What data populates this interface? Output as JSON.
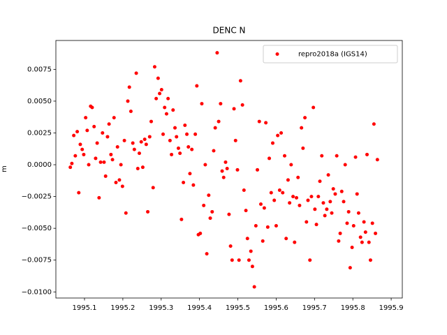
{
  "chart_data": {
    "type": "scatter",
    "title": "DENC N",
    "y_label": "m",
    "series": [
      {
        "name": "repro2018a (IGS14)",
        "color": "#ff0000",
        "x": [
          1995.063,
          1995.067,
          1995.072,
          1995.076,
          1995.081,
          1995.085,
          1995.089,
          1995.094,
          1995.098,
          1995.103,
          1995.107,
          1995.111,
          1995.116,
          1995.12,
          1995.125,
          1995.129,
          1995.133,
          1995.138,
          1995.142,
          1995.147,
          1995.151,
          1995.155,
          1995.16,
          1995.164,
          1995.169,
          1995.173,
          1995.177,
          1995.182,
          1995.186,
          1995.191,
          1995.195,
          1995.199,
          1995.204,
          1995.208,
          1995.213,
          1995.217,
          1995.221,
          1995.226,
          1995.23,
          1995.235,
          1995.239,
          1995.243,
          1995.248,
          1995.252,
          1995.257,
          1995.261,
          1995.265,
          1995.27,
          1995.274,
          1995.279,
          1995.283,
          1995.287,
          1995.292,
          1995.296,
          1995.301,
          1995.305,
          1995.309,
          1995.314,
          1995.318,
          1995.323,
          1995.327,
          1995.331,
          1995.336,
          1995.34,
          1995.345,
          1995.349,
          1995.353,
          1995.358,
          1995.362,
          1995.367,
          1995.371,
          1995.375,
          1995.38,
          1995.384,
          1995.389,
          1995.393,
          1995.397,
          1995.402,
          1995.406,
          1995.411,
          1995.415,
          1995.419,
          1995.424,
          1995.428,
          1995.433,
          1995.437,
          1995.441,
          1995.446,
          1995.45,
          1995.455,
          1995.459,
          1995.463,
          1995.468,
          1995.472,
          1995.477,
          1995.481,
          1995.485,
          1995.49,
          1995.494,
          1995.499,
          1995.503,
          1995.507,
          1995.512,
          1995.516,
          1995.521,
          1995.525,
          1995.529,
          1995.534,
          1995.538,
          1995.543,
          1995.547,
          1995.551,
          1995.556,
          1995.56,
          1995.565,
          1995.569,
          1995.573,
          1995.578,
          1995.582,
          1995.587,
          1995.591,
          1995.595,
          1995.6,
          1995.604,
          1995.609,
          1995.613,
          1995.617,
          1995.622,
          1995.626,
          1995.631,
          1995.635,
          1995.639,
          1995.644,
          1995.648,
          1995.653,
          1995.657,
          1995.661,
          1995.666,
          1995.67,
          1995.675,
          1995.679,
          1995.683,
          1995.688,
          1995.692,
          1995.697,
          1995.701,
          1995.705,
          1995.71,
          1995.714,
          1995.719,
          1995.723,
          1995.727,
          1995.732,
          1995.736,
          1995.741,
          1995.745,
          1995.749,
          1995.754,
          1995.758,
          1995.763,
          1995.767,
          1995.771,
          1995.776,
          1995.78,
          1995.785,
          1995.789,
          1995.793,
          1995.798,
          1995.802,
          1995.807,
          1995.811,
          1995.815,
          1995.82,
          1995.824,
          1995.829,
          1995.833,
          1995.837,
          1995.842,
          1995.846,
          1995.851,
          1995.855,
          1995.859,
          1995.864
        ],
        "values": [
          -0.0002,
          0.0001,
          0.0023,
          0.0007,
          0.0026,
          -0.0022,
          0.0016,
          0.0012,
          0.0008,
          0.0037,
          0.0027,
          0.0,
          0.0046,
          0.0045,
          0.003,
          0.0005,
          0.0017,
          -0.0026,
          0.0002,
          0.0025,
          0.0002,
          -0.0009,
          0.0022,
          0.0032,
          0.0008,
          0.0004,
          0.0037,
          -0.0014,
          0.0014,
          -0.0012,
          0.0,
          -0.0017,
          0.0019,
          -0.0038,
          0.005,
          0.0061,
          0.0042,
          0.0017,
          0.0012,
          0.0072,
          -0.0003,
          0.0009,
          0.0018,
          -0.0002,
          0.002,
          0.0016,
          -0.0037,
          0.0022,
          0.0034,
          -0.0018,
          0.0077,
          0.0052,
          0.0068,
          0.0056,
          0.0059,
          0.0024,
          0.0045,
          0.004,
          0.0052,
          0.0019,
          0.0008,
          0.0043,
          0.0029,
          0.0022,
          0.0013,
          0.0009,
          -0.0043,
          -0.0014,
          0.0031,
          0.0024,
          0.0014,
          -0.0007,
          0.0012,
          -0.0016,
          0.0024,
          0.0062,
          -0.0055,
          -0.0054,
          0.0048,
          -0.0032,
          0.0,
          -0.007,
          -0.0024,
          -0.0042,
          -0.0037,
          0.0011,
          0.0029,
          0.0088,
          0.0034,
          0.0048,
          -0.0005,
          -0.001,
          0.0002,
          -0.0003,
          -0.0039,
          -0.0064,
          -0.0075,
          0.0044,
          0.0019,
          -0.0004,
          -0.0075,
          0.0066,
          0.0047,
          -0.002,
          -0.0036,
          -0.0058,
          -0.0075,
          -0.0068,
          -0.008,
          -0.0096,
          -0.0048,
          -0.0004,
          0.0034,
          -0.0031,
          -0.006,
          -0.0034,
          0.0033,
          -0.0049,
          0.0005,
          -0.0022,
          0.0017,
          -0.0028,
          -0.0048,
          0.0023,
          -0.002,
          0.0025,
          -0.0022,
          0.0007,
          -0.0058,
          -0.0012,
          -0.003,
          0.0,
          -0.0025,
          -0.0061,
          -0.0026,
          -0.001,
          -0.0032,
          0.0029,
          0.0013,
          0.0037,
          -0.0045,
          -0.0028,
          -0.0075,
          -0.0025,
          0.0045,
          -0.0035,
          -0.0047,
          -0.0025,
          -0.0013,
          0.0007,
          -0.003,
          -0.004,
          -0.0035,
          -0.0008,
          -0.0029,
          -0.0038,
          -0.0019,
          -0.0023,
          0.0007,
          -0.006,
          -0.0054,
          -0.0021,
          -0.0029,
          0.0,
          -0.0046,
          -0.0037,
          -0.0081,
          -0.0065,
          -0.0048,
          0.0006,
          -0.0023,
          -0.0038,
          -0.0057,
          -0.0061,
          -0.0045,
          -0.0053,
          0.0008,
          -0.0061,
          -0.0075,
          -0.0046,
          0.0032,
          -0.0054,
          0.0004
        ]
      }
    ],
    "xlim": [
      1995.0253,
      1995.929
    ],
    "xticks": [
      1995.1,
      1995.2,
      1995.3,
      1995.4,
      1995.5,
      1995.6,
      1995.7,
      1995.8,
      1995.9
    ],
    "ylim": [
      -0.01048,
      0.00977
    ],
    "yticks": [
      {
        "value": -0.01,
        "label": "−0.0100"
      },
      {
        "value": -0.0075,
        "label": "−0.0075"
      },
      {
        "value": -0.005,
        "label": "−0.0050"
      },
      {
        "value": -0.0025,
        "label": "−0.0025"
      },
      {
        "value": 0,
        "label": "0.0000"
      },
      0.0025,
      {
        "value": 0.005,
        "label": "0.0050"
      },
      0.0075
    ],
    "legend": "upper right",
    "grid": false
  }
}
